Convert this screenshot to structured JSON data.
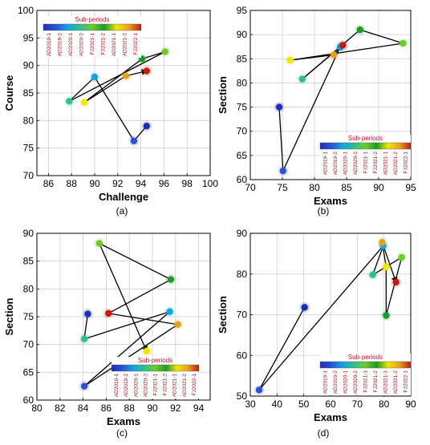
{
  "figure": {
    "panel_labels": [
      "(a)",
      "(b)",
      "(c)",
      "(d)"
    ]
  },
  "legend_title": "Sub-periods",
  "chart_data": [
    {
      "type": "line",
      "panel_label": "(a)",
      "title": "",
      "xlabel": "Challenge",
      "ylabel": "Course",
      "xlim": [
        85,
        100
      ],
      "ylim": [
        70,
        100
      ],
      "xticks": [
        86,
        88,
        90,
        92,
        94,
        96,
        98,
        100
      ],
      "yticks": [
        70,
        75,
        80,
        85,
        90,
        95,
        100
      ],
      "grid": true,
      "legend_position": "top",
      "legend_labels": [
        "AD2019-1",
        "AD2019-2",
        "AD2020-1",
        "AD2020-2",
        "FJ2021-1",
        "FJ2021-2",
        "AD2021-1",
        "AD2021-2",
        "FJ2022-1"
      ],
      "series": [
        {
          "points": [
            {
              "x": 94.5,
              "y": 79.0,
              "color": "#1f2db5"
            },
            {
              "x": 93.4,
              "y": 76.3,
              "color": "#2a52d8"
            },
            {
              "x": 90.0,
              "y": 87.9,
              "color": "#16a3df"
            },
            {
              "x": 87.8,
              "y": 83.5,
              "color": "#2fbf8c"
            },
            {
              "x": 96.1,
              "y": 92.5,
              "color": "#6fcb2a"
            },
            {
              "x": 94.1,
              "y": 91.2,
              "color": "#1e9a2a"
            },
            {
              "x": 89.1,
              "y": 83.3,
              "color": "#f2e600"
            },
            {
              "x": 92.7,
              "y": 88.1,
              "color": "#e8a020"
            },
            {
              "x": 94.5,
              "y": 89.0,
              "color": "#c41a10"
            }
          ]
        }
      ]
    },
    {
      "type": "line",
      "panel_label": "(b)",
      "title": "",
      "xlabel": "Exams",
      "ylabel": "Section",
      "xlim": [
        70,
        95
      ],
      "ylim": [
        60,
        95
      ],
      "xticks": [
        70,
        75,
        80,
        85,
        90,
        95
      ],
      "yticks": [
        60,
        65,
        70,
        75,
        80,
        85,
        90,
        95
      ],
      "grid": true,
      "legend_position": "bottom-right",
      "legend_labels": [
        "AD2019-1",
        "AD2019-2",
        "AD2020-1",
        "AD2020-2",
        "FJ2021-1",
        "FJ2021-2",
        "AD2021-1",
        "AD2021-2",
        "FJ2022-1"
      ],
      "series": [
        {
          "points": [
            {
              "x": 74.5,
              "y": 75.0,
              "color": "#1f2db5"
            },
            {
              "x": 75.1,
              "y": 61.8,
              "color": "#2a52d8"
            },
            {
              "x": 84.0,
              "y": 87.4,
              "color": "#16a3df"
            },
            {
              "x": 78.1,
              "y": 80.8,
              "color": "#2fbf8c"
            },
            {
              "x": 87.1,
              "y": 91.0,
              "color": "#1e9a2a"
            },
            {
              "x": 93.8,
              "y": 88.2,
              "color": "#6fcb2a"
            },
            {
              "x": 76.2,
              "y": 84.7,
              "color": "#f2e600"
            },
            {
              "x": 83.0,
              "y": 85.8,
              "color": "#e8a020"
            },
            {
              "x": 84.4,
              "y": 87.8,
              "color": "#c41a10"
            }
          ]
        }
      ]
    },
    {
      "type": "line",
      "panel_label": "(c)",
      "title": "",
      "xlabel": "Exams",
      "ylabel": "Section",
      "xlim": [
        80,
        95
      ],
      "ylim": [
        60,
        90
      ],
      "xticks": [
        80,
        82,
        84,
        86,
        88,
        90,
        92,
        94
      ],
      "yticks": [
        60,
        65,
        70,
        75,
        80,
        85,
        90
      ],
      "grid": true,
      "legend_position": "bottom-right",
      "legend_labels": [
        "AD2019-1",
        "AD2019-2",
        "AD2020-1",
        "AD2020-2",
        "FJ2021-1",
        "FJ2021-2",
        "AD2021-1",
        "AD2021-2",
        "FJ2022-1"
      ],
      "series": [
        {
          "points": [
            {
              "x": 84.4,
              "y": 75.5,
              "color": "#1f2db5"
            },
            {
              "x": 84.1,
              "y": 71.0,
              "color": "#2fbf8c"
            },
            {
              "x": 91.5,
              "y": 75.9,
              "color": "#16a3df"
            },
            {
              "x": 84.1,
              "y": 62.5,
              "color": "#2a52d8"
            },
            {
              "x": 92.2,
              "y": 73.6,
              "color": "#e8a020"
            },
            {
              "x": 86.2,
              "y": 75.6,
              "color": "#c41a10"
            },
            {
              "x": 91.6,
              "y": 81.7,
              "color": "#1e9a2a"
            },
            {
              "x": 85.4,
              "y": 88.2,
              "color": "#6fcb2a"
            },
            {
              "x": 89.5,
              "y": 68.8,
              "color": "#f2e600"
            }
          ]
        }
      ]
    },
    {
      "type": "line",
      "panel_label": "(d)",
      "title": "",
      "xlabel": "Exams",
      "ylabel": "Section",
      "xlim": [
        30,
        90
      ],
      "ylim": [
        50,
        90
      ],
      "xticks": [
        30,
        40,
        50,
        60,
        70,
        80,
        90
      ],
      "yticks": [
        50,
        60,
        70,
        80,
        90
      ],
      "grid": true,
      "legend_position": "bottom-right",
      "legend_labels": [
        "AD2019-1",
        "AD2019-2",
        "AD2020-1",
        "AD2020-2",
        "FJ2021-1",
        "FJ2021-2",
        "AD2021-1",
        "AD2021-2",
        "FJ2022-1"
      ],
      "series": [
        {
          "points": [
            {
              "x": 50.3,
              "y": 71.8,
              "color": "#1f2db5"
            },
            {
              "x": 33.3,
              "y": 51.5,
              "color": "#2a52d8"
            },
            {
              "x": 79.7,
              "y": 86.9,
              "color": "#16a3df"
            },
            {
              "x": 75.8,
              "y": 79.8,
              "color": "#2fbf8c"
            },
            {
              "x": 86.6,
              "y": 84.1,
              "color": "#6fcb2a"
            },
            {
              "x": 80.8,
              "y": 69.8,
              "color": "#1e9a2a"
            },
            {
              "x": 80.8,
              "y": 81.8,
              "color": "#f2e600"
            },
            {
              "x": 79.3,
              "y": 87.8,
              "color": "#e8a020"
            },
            {
              "x": 84.5,
              "y": 78.0,
              "color": "#c41a10"
            }
          ]
        }
      ]
    }
  ]
}
